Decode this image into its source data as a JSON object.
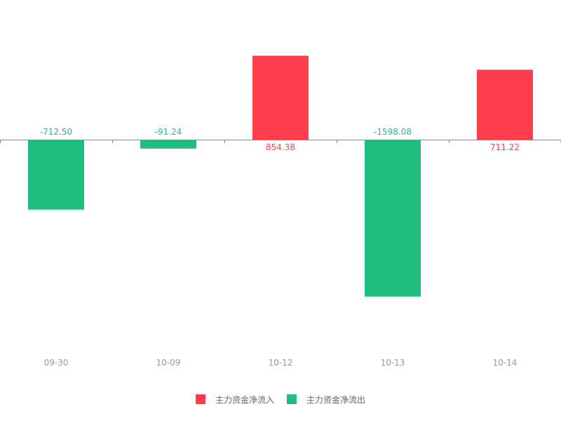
{
  "colors": {
    "inflow": "#fe3e4e",
    "outflow": "#21bd7f",
    "axis": "#888888",
    "tick_text": "#999999"
  },
  "legend": {
    "inflow_label": "主力资金净流入",
    "outflow_label": "主力资金净流出"
  },
  "chart_data": {
    "type": "bar",
    "title": "",
    "xlabel": "",
    "ylabel": "",
    "categories": [
      "09-30",
      "10-09",
      "10-12",
      "10-13",
      "10-14"
    ],
    "values": [
      -712.5,
      -91.24,
      854.38,
      -1598.08,
      711.22
    ],
    "value_labels": [
      "-712.50",
      "-91.24",
      "854.38",
      "-1598.08",
      "711.22"
    ],
    "ylim": [
      -2150,
      850
    ],
    "grid": false,
    "legend_position": "bottom"
  }
}
